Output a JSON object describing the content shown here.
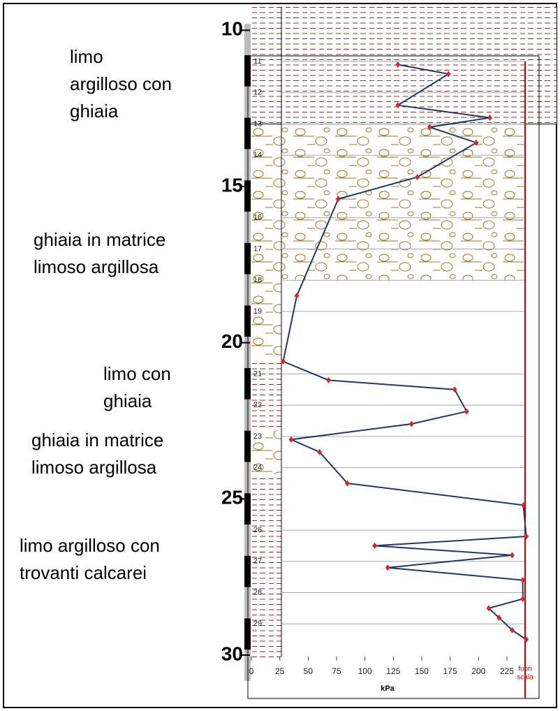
{
  "chart_data": {
    "type": "line",
    "x": [
      129,
      173.5,
      129,
      210,
      157,
      198,
      146,
      76.5,
      40,
      28,
      68,
      179,
      189.5,
      141,
      35,
      60,
      84.5,
      239.5,
      242,
      108.6,
      229.6,
      120,
      239,
      239,
      209,
      218,
      229.6,
      242
    ],
    "y": [
      11.1,
      11.4,
      12.4,
      12.8,
      13.1,
      13.6,
      14.7,
      15.4,
      18.5,
      20.6,
      21.2,
      21.5,
      22.2,
      22.6,
      23.1,
      23.5,
      24.5,
      25.2,
      26.2,
      26.5,
      26.8,
      27.2,
      27.6,
      28.2,
      28.5,
      28.8,
      29.2,
      29.5
    ],
    "line_color": "#1f3864",
    "marker_color": "#d9262c",
    "xlabel": "kPa",
    "xlim": [
      0,
      241
    ],
    "xticks": [
      0,
      25,
      50,
      75,
      100,
      125,
      150,
      175,
      200,
      225
    ],
    "ylim": [
      10.82,
      30
    ],
    "y_inverted": true,
    "yticks": [
      11,
      12,
      13,
      14,
      16,
      17,
      18,
      19,
      21,
      22,
      23,
      24,
      26,
      27,
      28,
      29
    ],
    "depth_labels": [
      10,
      15,
      20,
      25,
      30
    ],
    "limit_annotation": [
      "fuori",
      "scala"
    ],
    "limit_color": "#c00000",
    "grid": true,
    "annotations": [
      [
        "limo",
        "argilloso con",
        "ghiaia"
      ],
      [
        "ghiaia in matrice",
        "limoso argillosa"
      ],
      [
        "limo con",
        "ghiaia"
      ],
      [
        "ghiaia in matrice",
        "limoso argillosa"
      ],
      [
        "limo argilloso con",
        "trovanti calcarei"
      ]
    ]
  }
}
